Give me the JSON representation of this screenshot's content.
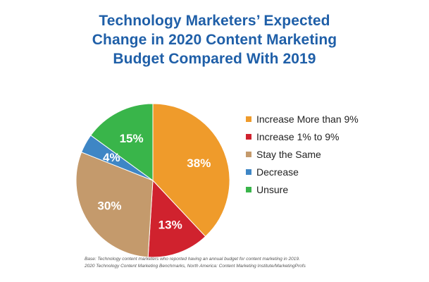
{
  "chart_data": {
    "type": "pie",
    "title": "Technology Marketers’ Expected Change in 2020 Content Marketing Budget Compared With 2019",
    "title_lines": [
      "Technology Marketers’ Expected",
      "Change in 2020 Content Marketing",
      "Budget Compared With 2019"
    ],
    "categories": [
      "Increase More than 9%",
      "Increase 1% to 9%",
      "Stay the Same",
      "Decrease",
      "Unsure"
    ],
    "values": [
      38,
      13,
      30,
      4,
      15
    ],
    "data_labels": [
      "38%",
      "13%",
      "30%",
      "4%",
      "15%"
    ],
    "colors": [
      "#ef9b2b",
      "#d0222e",
      "#c49a6c",
      "#3e86c5",
      "#39b54a"
    ],
    "legend_position": "right",
    "start_angle": "12 o'clock, clockwise"
  },
  "footnote": {
    "line1": "Base: Technology content marketers who reported having an annual budget for content marketing in 2019.",
    "line2": "2020 Technology Content Marketing Benchmarks, North America: Content Marketing Institute/MarketingProfs"
  }
}
